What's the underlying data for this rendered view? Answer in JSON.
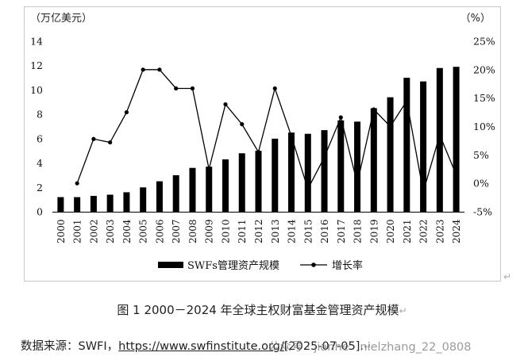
{
  "caption": {
    "text": "图 1 2000－2024 年全球主权财富基金管理资产规模",
    "mark": "↵"
  },
  "source": {
    "prefix": "数据来源：SWFI，",
    "url": "https://www.swfinstitute.org/",
    "suffix": "[2025-07-05].",
    "mark": "↵"
  },
  "watermark": {
    "text": "公众号 · jianhe · nielzhang_22_0808"
  },
  "para_mark": "↵",
  "colors": {
    "bar": "#000000",
    "line": "#000000",
    "border": "#c8c8c8",
    "text": "#222222"
  },
  "chart_data": {
    "type": "bar",
    "title": "",
    "ylabel_left": "（万亿美元）",
    "ylabel_right": "（%）",
    "categories": [
      "2000",
      "2001",
      "2002",
      "2003",
      "2004",
      "2005",
      "2006",
      "2007",
      "2008",
      "2009",
      "2010",
      "2011",
      "2012",
      "2013",
      "2014",
      "2015",
      "2016",
      "2017",
      "2018",
      "2019",
      "2020",
      "2021",
      "2022",
      "2023",
      "2024"
    ],
    "ylim_left": [
      0,
      14
    ],
    "yticks_left": [
      "0",
      "2",
      "4",
      "6",
      "8",
      "10",
      "12",
      "14"
    ],
    "ylim_right": [
      -5,
      25
    ],
    "yticks_right": [
      "-5%",
      "0%",
      "5%",
      "10%",
      "15%",
      "20%",
      "25%"
    ],
    "series": [
      {
        "name": "SWFs管理资产规模",
        "type": "bar",
        "axis": "left",
        "values": [
          1.2,
          1.2,
          1.3,
          1.4,
          1.6,
          2.0,
          2.5,
          3.0,
          3.6,
          3.7,
          4.3,
          4.8,
          5.0,
          6.0,
          6.5,
          6.4,
          6.7,
          7.5,
          7.4,
          8.5,
          9.4,
          11.0,
          10.7,
          11.8,
          11.9
        ]
      },
      {
        "name": "增长率",
        "type": "line",
        "axis": "right",
        "values": [
          null,
          0,
          7.8,
          7.2,
          12.5,
          20,
          20,
          16.7,
          16.7,
          2.5,
          13.9,
          10.4,
          5.5,
          16.7,
          8.3,
          -1.0,
          4.6,
          11.6,
          0,
          13,
          10,
          14.5,
          -1.5,
          8.5,
          1.5
        ]
      }
    ],
    "legend_position": "bottom-center",
    "grid": false
  }
}
